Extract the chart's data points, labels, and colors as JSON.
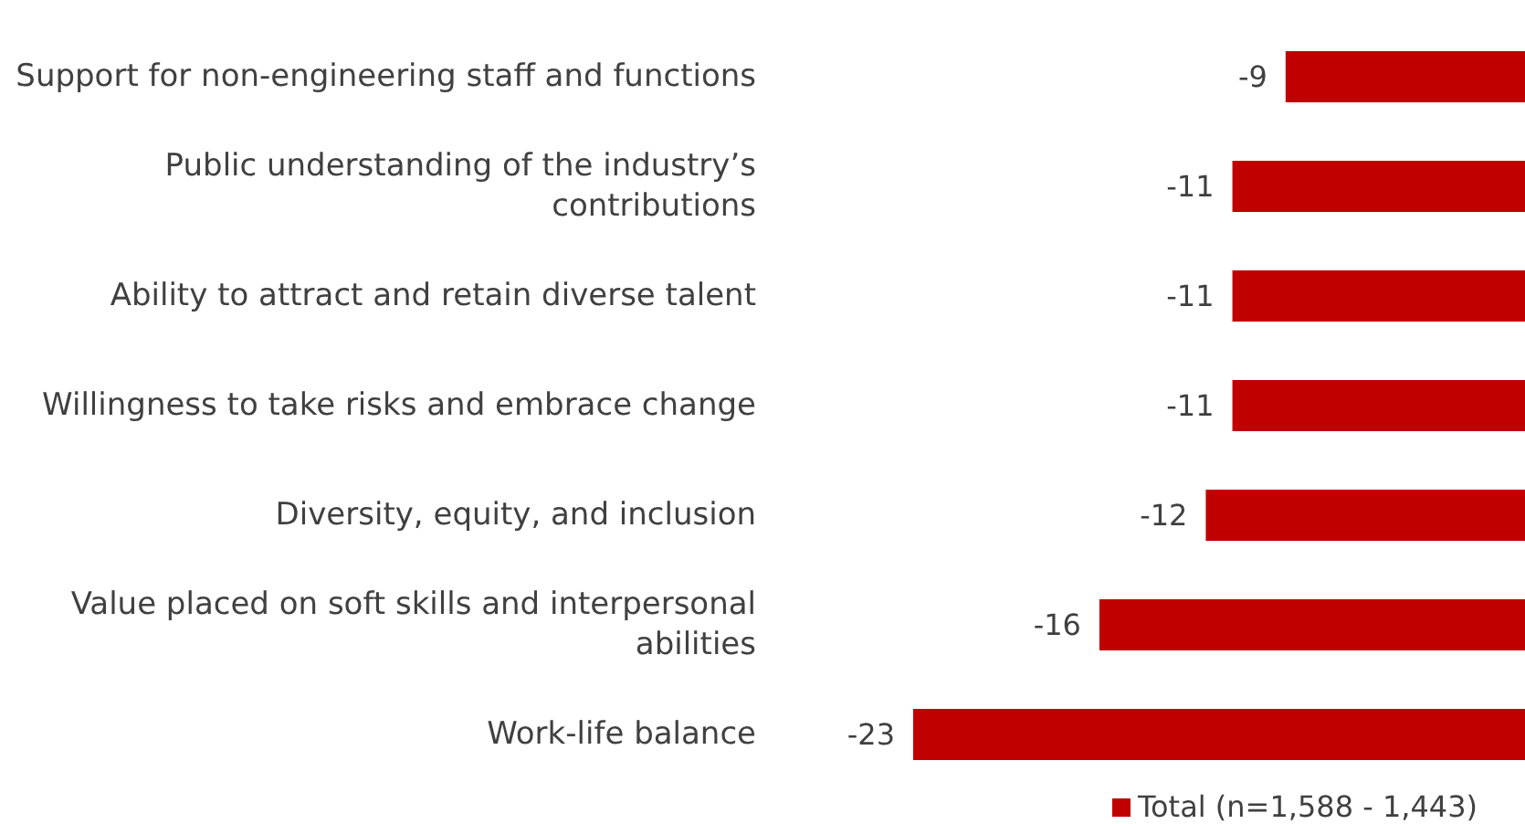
{
  "chart_data": {
    "type": "bar",
    "orientation": "horizontal",
    "categories": [
      "Support for non-engineering staff and functions",
      "Public understanding of the industry’s contributions",
      "Ability to attract and retain diverse talent",
      "Willingness to take risks and embrace change",
      "Diversity, equity, and inclusion",
      "Value placed on soft skills and interpersonal abilities",
      "Work-life balance"
    ],
    "series": [
      {
        "name": "Total (n=1,588 - 1,443)",
        "color": "#c00000",
        "values": [
          -9,
          -11,
          -11,
          -11,
          -12,
          -16,
          -23
        ]
      }
    ],
    "tick_labels": "y",
    "data_labels": true,
    "legend": "bottom right",
    "grid": false
  }
}
